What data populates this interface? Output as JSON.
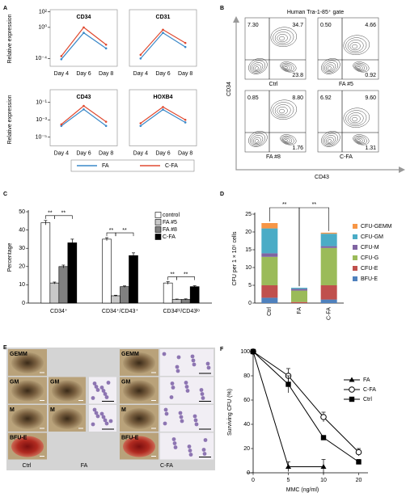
{
  "panel_labels": [
    "A",
    "B",
    "C",
    "D",
    "E",
    "F"
  ],
  "chart_data": [
    {
      "type": "line",
      "title": "CD34",
      "ylabel": "Relative expression",
      "categories": [
        "Day 4",
        "Day 6",
        "Day 8"
      ],
      "ylog": true,
      "ylim": [
        1e-05,
        1000
      ],
      "yticks": [
        {
          "value": 100,
          "label": "10²"
        },
        {
          "value": 1,
          "label": "10⁰"
        },
        {
          "value": 0.0001,
          "label": "10⁻⁴"
        }
      ],
      "series": [
        {
          "name": "FA",
          "color": "#3a88c8",
          "values": [
            8e-05,
            0.2,
            0.002
          ]
        },
        {
          "name": "C-FA",
          "color": "#e04a30",
          "values": [
            0.0002,
            1,
            0.006
          ]
        }
      ]
    },
    {
      "type": "line",
      "title": "CD31",
      "categories": [
        "Day 4",
        "Day 6",
        "Day 8"
      ],
      "ylog": true,
      "ylim": [
        1e-05,
        1000
      ],
      "series": [
        {
          "color": "#3a88c8",
          "values": [
            0.0001,
            0.2,
            0.003
          ]
        },
        {
          "color": "#e04a30",
          "values": [
            0.0003,
            0.5,
            0.01
          ]
        }
      ]
    },
    {
      "type": "line",
      "title": "CD43",
      "ylabel": "Relative expression",
      "categories": [
        "Day 4",
        "Day 6",
        "Day 8"
      ],
      "ylog": true,
      "ylim": [
        1e-06,
        1
      ],
      "yticks": [
        {
          "value": 0.1,
          "label": "10⁻¹"
        },
        {
          "value": 0.001,
          "label": "10⁻³"
        },
        {
          "value": 1e-05,
          "label": "10⁻⁵"
        }
      ],
      "series": [
        {
          "color": "#3a88c8",
          "values": [
            0.0002,
            0.016,
            0.0002
          ]
        },
        {
          "color": "#e04a30",
          "values": [
            0.0003,
            0.04,
            0.0006
          ]
        }
      ]
    },
    {
      "type": "line",
      "title": "HOXB4",
      "categories": [
        "Day 4",
        "Day 6",
        "Day 8"
      ],
      "ylog": true,
      "ylim": [
        1e-06,
        1
      ],
      "series": [
        {
          "color": "#3a88c8",
          "values": [
            0.0002,
            0.015,
            0.0005
          ]
        },
        {
          "color": "#e04a30",
          "values": [
            0.0004,
            0.03,
            0.001
          ]
        }
      ]
    },
    {
      "type": "grouped_bar",
      "ylabel": "Percentage",
      "categories": [
        "CD34⁺",
        "CD34⁺/CD43⁺",
        "CD34ʰⁱ/CD43ˡᵒ"
      ],
      "ylim": [
        0,
        50
      ],
      "yticks": [
        0,
        10,
        20,
        30,
        40,
        50
      ],
      "series": [
        {
          "name": "control",
          "color": "#ffffff",
          "values": [
            44,
            35,
            11
          ],
          "errors": [
            1.2,
            0.8,
            0.7
          ]
        },
        {
          "name": "FA #5",
          "color": "#c8c8c8",
          "values": [
            11,
            4,
            2
          ],
          "errors": [
            0.5,
            0.3,
            0.2
          ]
        },
        {
          "name": "FA #8",
          "color": "#808080",
          "values": [
            20,
            9,
            2
          ],
          "errors": [
            0.8,
            0.4,
            0.3
          ]
        },
        {
          "name": "C-FA",
          "color": "#000000",
          "values": [
            33,
            26,
            9
          ],
          "errors": [
            2,
            1.5,
            0.5
          ]
        }
      ],
      "annotations": [
        "**",
        "**",
        "**",
        "**",
        "**",
        "**"
      ]
    },
    {
      "type": "stacked_bar",
      "ylabel": "CFU per 1 × 10⁵ cells",
      "categories": [
        "Ctrl",
        "FA",
        "C-FA"
      ],
      "ylim": [
        0,
        25
      ],
      "yticks": [
        0,
        5,
        10,
        15,
        20,
        25
      ],
      "series": [
        {
          "name": "BFU-E",
          "color": "#4f81bd",
          "values": [
            1.5,
            0,
            1
          ]
        },
        {
          "name": "CFU-E",
          "color": "#c0504d",
          "values": [
            3.5,
            0.3,
            4
          ]
        },
        {
          "name": "CFU-G",
          "color": "#9bbb59",
          "values": [
            8,
            3.2,
            10.5
          ]
        },
        {
          "name": "CFU-M",
          "color": "#8064a2",
          "values": [
            1,
            0.5,
            0.5
          ]
        },
        {
          "name": "CFU-GM",
          "color": "#4bacc6",
          "values": [
            7,
            0.3,
            3.5
          ]
        },
        {
          "name": "CFU-GEMM",
          "color": "#f79646",
          "values": [
            1.5,
            0,
            0.3
          ]
        }
      ],
      "annotations": [
        "**",
        "**"
      ]
    },
    {
      "type": "line",
      "xlabel": "MMC (ng/ml)",
      "ylabel": "Surviving CFU (%)",
      "categories": [
        "0",
        "5",
        "10",
        "20"
      ],
      "ylim": [
        0,
        100
      ],
      "yticks": [
        0,
        20,
        40,
        60,
        80,
        100
      ],
      "series": [
        {
          "name": "FA",
          "color": "#000000",
          "marker": "triangle",
          "values": [
            100,
            5,
            5,
            null
          ],
          "errors": [
            null,
            4,
            6,
            null
          ]
        },
        {
          "name": "C-FA",
          "color": "#000000",
          "marker": "circle-open",
          "values": [
            100,
            80,
            46,
            17
          ],
          "errors": [
            null,
            6,
            4,
            3
          ]
        },
        {
          "name": "Ctrl",
          "color": "#000000",
          "marker": "square",
          "values": [
            100,
            73,
            29,
            9
          ],
          "errors": [
            null,
            7,
            null,
            2
          ]
        }
      ]
    }
  ],
  "flow": {
    "title": "Human Tra-1-85⁺ gate",
    "ylabel": "CD34",
    "xlabel": "CD43",
    "plots": [
      {
        "name": "Ctrl",
        "quadrants": [
          "7.30",
          "34.7",
          "23.8"
        ]
      },
      {
        "name": "FA #5",
        "quadrants": [
          "0.50",
          "4.66",
          "0.92"
        ]
      },
      {
        "name": "FA #8",
        "quadrants": [
          "0.85",
          "8.80",
          "1.76"
        ]
      },
      {
        "name": "C-FA",
        "quadrants": [
          "6.92",
          "9.60",
          "1.31"
        ]
      }
    ]
  },
  "colonies": {
    "columns": [
      {
        "name": "Ctrl",
        "rows": [
          "GEMM",
          "GM",
          "M",
          "BFU-E"
        ]
      },
      {
        "name": "FA",
        "rows": [
          "GM",
          "M"
        ]
      },
      {
        "name": "C-FA",
        "rows": [
          "GEMM",
          "GM",
          "M",
          "BFU-E"
        ]
      }
    ]
  }
}
